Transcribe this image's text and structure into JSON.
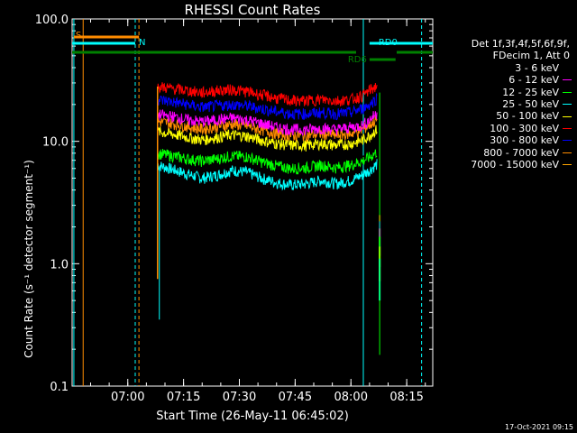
{
  "chart_data": {
    "type": "line",
    "title": "RHESSI Count Rates",
    "xlabel": "Start Time (26-May-11 06:45:02)",
    "ylabel": "Count Rate (s⁻¹ detector segment⁻¹)",
    "yscale": "log",
    "ylim": [
      0.1,
      100
    ],
    "xlim": [
      "06:45:02",
      "08:22:00"
    ],
    "x_ticks": [
      "07:00",
      "07:15",
      "07:30",
      "07:45",
      "08:00",
      "08:15"
    ],
    "y_ticks": [
      "0.1",
      "1.0",
      "10.0",
      "100.0"
    ],
    "x": [
      "07:08",
      "07:12",
      "07:16",
      "07:20",
      "07:24",
      "07:28",
      "07:32",
      "07:36",
      "07:40",
      "07:44",
      "07:48",
      "07:52",
      "07:56",
      "08:00",
      "08:03",
      "08:05",
      "08:07"
    ],
    "series": [
      {
        "name": "3 - 6 keV",
        "color": "#000000",
        "values": [
          8.2,
          7.6,
          7.2,
          6.8,
          7.2,
          7.8,
          7.6,
          6.8,
          6.2,
          6.0,
          6.2,
          6.5,
          6.0,
          6.5,
          7.0,
          7.5,
          8.5
        ]
      },
      {
        "name": "6 - 12 keV",
        "color": "#ff00ff",
        "values": [
          16.5,
          16.0,
          15.0,
          14.5,
          15.0,
          15.5,
          15.0,
          14.0,
          13.0,
          12.5,
          12.5,
          12.8,
          12.5,
          13.0,
          13.5,
          15.0,
          17.0
        ]
      },
      {
        "name": "12 - 25 keV",
        "color": "#00ff00",
        "values": [
          8.0,
          7.6,
          7.2,
          6.9,
          7.2,
          7.6,
          7.5,
          6.8,
          6.3,
          6.0,
          6.1,
          6.4,
          6.1,
          6.4,
          6.9,
          7.4,
          8.2
        ]
      },
      {
        "name": "25 - 50 keV",
        "color": "#00ffff",
        "values": [
          6.4,
          5.9,
          5.4,
          5.0,
          5.3,
          5.8,
          5.6,
          5.0,
          4.6,
          4.4,
          4.5,
          4.8,
          4.5,
          4.8,
          5.3,
          5.8,
          6.5
        ]
      },
      {
        "name": "50 - 100 keV",
        "color": "#ffff00",
        "values": [
          12.0,
          11.5,
          10.8,
          10.3,
          10.8,
          11.3,
          11.0,
          10.2,
          9.6,
          9.3,
          9.3,
          9.6,
          9.3,
          9.6,
          10.2,
          11.2,
          12.5
        ]
      },
      {
        "name": "100 - 300 keV",
        "color": "#ff0000",
        "values": [
          28.0,
          27.0,
          26.0,
          25.0,
          26.0,
          26.5,
          25.5,
          24.0,
          22.5,
          21.5,
          21.5,
          22.0,
          21.5,
          22.0,
          23.5,
          26.0,
          28.5
        ]
      },
      {
        "name": "300 - 800 keV",
        "color": "#0000ff",
        "values": [
          22.0,
          21.0,
          20.0,
          19.0,
          19.5,
          20.0,
          19.5,
          18.5,
          17.5,
          16.8,
          16.8,
          17.2,
          16.8,
          17.2,
          18.5,
          20.0,
          22.5
        ]
      },
      {
        "name": "800 - 7000 keV",
        "color": "#ff8c00",
        "values": [
          14.5,
          14.0,
          13.2,
          12.6,
          13.2,
          13.8,
          13.4,
          12.4,
          11.6,
          11.2,
          11.2,
          11.6,
          11.2,
          11.6,
          12.4,
          13.6,
          15.0
        ]
      },
      {
        "name": "7000 - 15000 keV",
        "color": "#ffa500",
        "values": [
          0,
          0,
          0,
          0,
          0,
          0,
          0,
          0,
          0,
          0,
          0,
          0,
          0,
          0,
          0,
          0,
          0
        ]
      }
    ],
    "flags": [
      {
        "name": "S",
        "color": "#ff8c00",
        "start": "06:45:30",
        "end": "07:03:00"
      },
      {
        "name": "N",
        "color": "#00ffff",
        "start": "06:45:02",
        "end": "07:02:00"
      },
      {
        "name": "RD0",
        "color": "#00ffff",
        "start": "08:05:00",
        "end": "08:22:00"
      },
      {
        "name": "RD6",
        "color": "#008000",
        "start": "08:05:00",
        "end": "08:12:00"
      }
    ],
    "legend_header": [
      "Det 1f,3f,4f,5f,6f,9f,",
      "FDecim 1, Att 0"
    ],
    "legend_position": "right"
  },
  "footer_date": "17-Oct-2021 09:15"
}
